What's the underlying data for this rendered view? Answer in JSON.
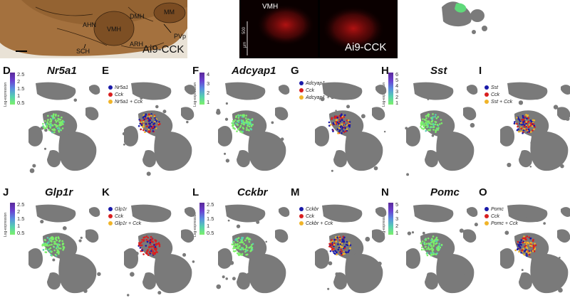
{
  "top": {
    "histology": {
      "region_labels": [
        "AHN",
        "DMH",
        "MM",
        "VMH",
        "ARH",
        "SCH",
        "PVp"
      ],
      "caption": "Ai9-CCK"
    },
    "fluorescence": {
      "region_label": "VMH",
      "scale_value": "500",
      "scale_unit": "µm",
      "caption": "Ai9-CCK"
    }
  },
  "colors": {
    "cluster": "#7a7a7a",
    "expr_low": "#7cf06a",
    "expr_high": "#5b2a9a",
    "gene1": "#1a1aa8",
    "cck": "#d91f1f",
    "both": "#f0b429"
  },
  "axis_title": "Log-expression",
  "panels": [
    {
      "letter": "D",
      "gene": "Nr5a1",
      "ticks": [
        "2.5",
        "2",
        "1.5",
        "1",
        "0.5"
      ]
    },
    {
      "letter": "E",
      "legend": [
        "Nr5a1",
        "Cck",
        "Nr5a1 + Cck"
      ]
    },
    {
      "letter": "F",
      "gene": "Adcyap1",
      "ticks": [
        "4",
        "3",
        "2",
        "1"
      ]
    },
    {
      "letter": "G",
      "legend": [
        "Adcyap1",
        "Cck",
        "Adcyap1 + Cck"
      ]
    },
    {
      "letter": "H",
      "gene": "Sst",
      "ticks": [
        "6",
        "5",
        "4",
        "3",
        "2",
        "1"
      ]
    },
    {
      "letter": "I",
      "legend": [
        "Sst",
        "Cck",
        "Sst + Cck"
      ]
    },
    {
      "letter": "J",
      "gene": "Glp1r",
      "ticks": [
        "2.5",
        "2",
        "1.5",
        "1",
        "0.5"
      ]
    },
    {
      "letter": "K",
      "legend": [
        "Glp1r",
        "Cck",
        "Glp1r + Cck"
      ]
    },
    {
      "letter": "L",
      "gene": "Cckbr",
      "ticks": [
        "2.5",
        "2",
        "1.5",
        "1",
        "0.5"
      ]
    },
    {
      "letter": "M",
      "legend": [
        "Cckbr",
        "Cck",
        "Cckbr + Cck"
      ]
    },
    {
      "letter": "N",
      "gene": "Pomc",
      "ticks": [
        "5",
        "4",
        "3",
        "2",
        "1"
      ]
    },
    {
      "letter": "O",
      "legend": [
        "Pomc",
        "Cck",
        "Pomc + Cck"
      ]
    }
  ]
}
